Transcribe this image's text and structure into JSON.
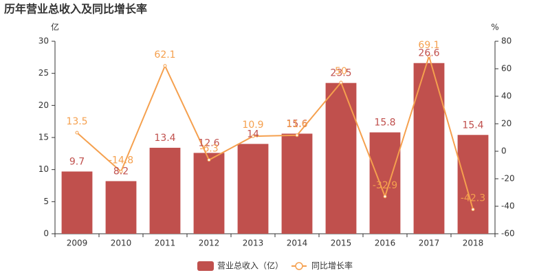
{
  "chart_data": {
    "type": "bar",
    "title": "历年营业总收入及同比增长率",
    "y_label": "亿",
    "y2_label": "%",
    "categories": [
      "2009",
      "2010",
      "2011",
      "2012",
      "2013",
      "2014",
      "2015",
      "2016",
      "2017",
      "2018"
    ],
    "series": [
      {
        "name": "营业总收入（亿）",
        "type": "bar",
        "color": "#c0504d",
        "label_color": "#c0504d",
        "values": [
          9.7,
          8.2,
          13.4,
          12.6,
          14,
          15.6,
          23.5,
          15.8,
          26.6,
          15.4
        ]
      },
      {
        "name": "同比增长率",
        "type": "line",
        "axis": "y2",
        "color": "#f5a04e",
        "label_color": "#f5a04e",
        "values": [
          13.5,
          -14.8,
          62.1,
          -6.3,
          10.9,
          11.6,
          50,
          -32.9,
          69.1,
          -42.3
        ]
      }
    ],
    "ylim": [
      0,
      30
    ],
    "yticks": [
      0,
      5,
      10,
      15,
      20,
      25,
      30
    ],
    "y2lim": [
      -60,
      80
    ],
    "y2ticks": [
      -60,
      -40,
      -20,
      0,
      20,
      40,
      60,
      80
    ],
    "grid": false
  }
}
